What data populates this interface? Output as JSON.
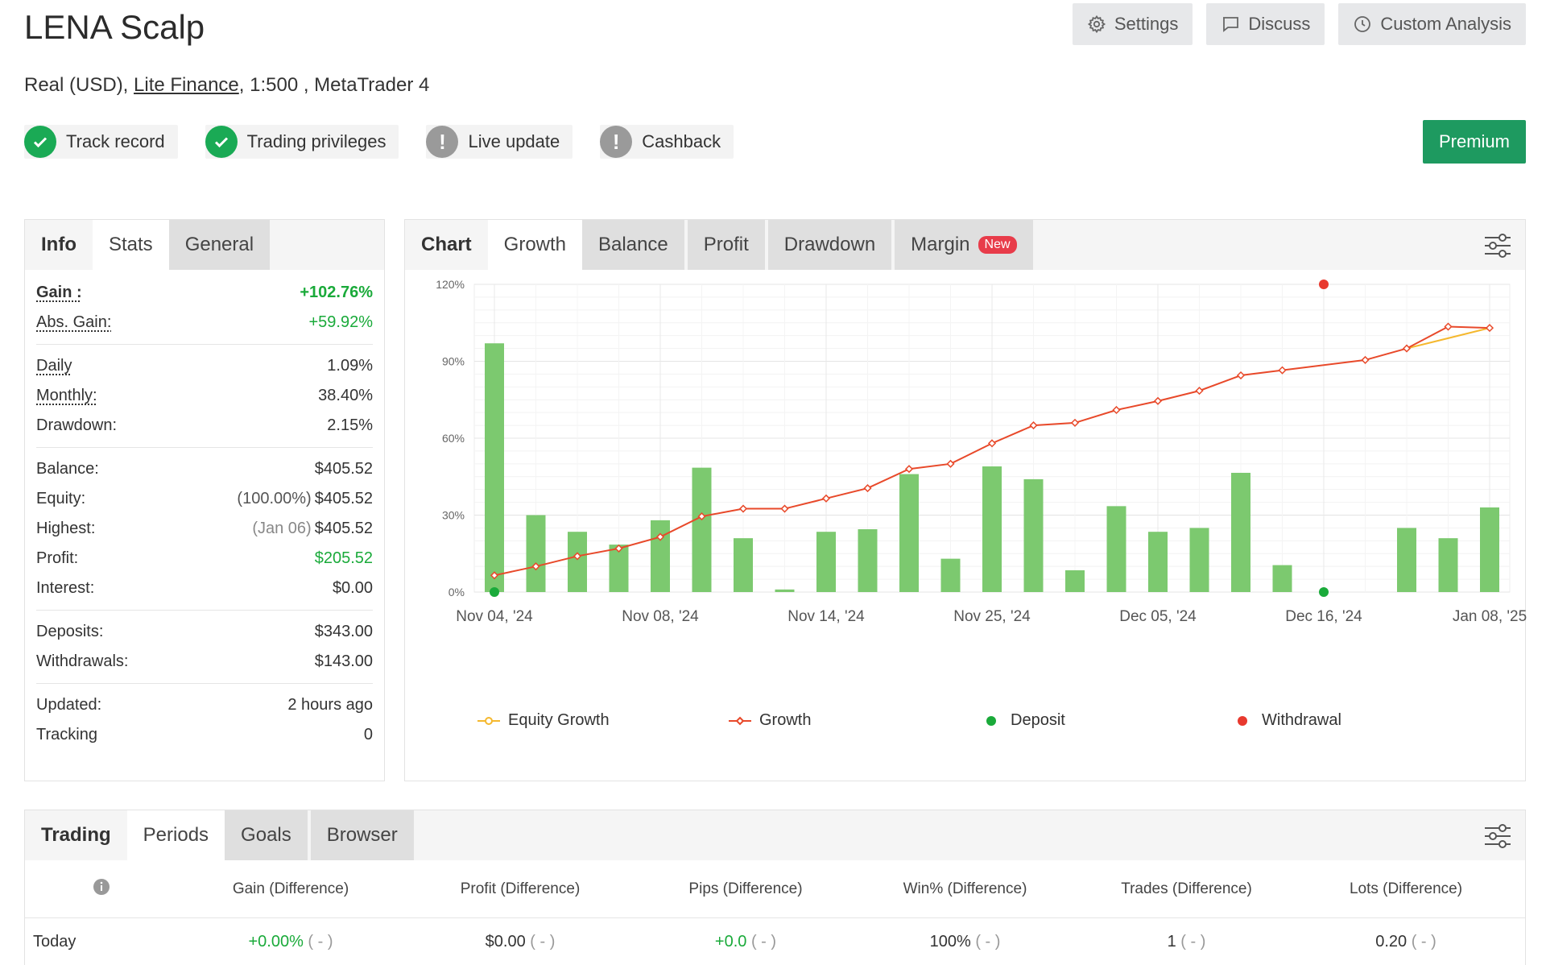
{
  "header": {
    "title": "LENA Scalp",
    "settings_label": "Settings",
    "discuss_label": "Discuss",
    "custom_analysis_label": "Custom Analysis"
  },
  "account": {
    "prefix": "Real (USD), ",
    "broker": "Lite Finance",
    "suffix": ", 1:500 , MetaTrader 4"
  },
  "badges": [
    {
      "label": "Track record",
      "status": "ok"
    },
    {
      "label": "Trading privileges",
      "status": "ok"
    },
    {
      "label": "Live update",
      "status": "warn"
    },
    {
      "label": "Cashback",
      "status": "warn"
    }
  ],
  "premium_label": "Premium",
  "info_tabs": [
    "Info",
    "Stats",
    "General"
  ],
  "info": {
    "gain_label": "Gain :",
    "gain": "+102.76%",
    "abs_gain_label": "Abs. Gain:",
    "abs_gain": "+59.92%",
    "daily_label": "Daily",
    "daily": "1.09%",
    "monthly_label": "Monthly:",
    "monthly": "38.40%",
    "drawdown_label": "Drawdown:",
    "drawdown": "2.15%",
    "balance_label": "Balance:",
    "balance": "$405.52",
    "equity_label": "Equity:",
    "equity_pct": "(100.00%)",
    "equity": "$405.52",
    "highest_label": "Highest:",
    "highest_date": "(Jan 06)",
    "highest": "$405.52",
    "profit_label": "Profit:",
    "profit": "$205.52",
    "interest_label": "Interest:",
    "interest": "$0.00",
    "deposits_label": "Deposits:",
    "deposits": "$343.00",
    "withdrawals_label": "Withdrawals:",
    "withdrawals": "$143.00",
    "updated_label": "Updated:",
    "updated": "2 hours ago",
    "tracking_label": "Tracking",
    "tracking": "0"
  },
  "chart_tabs": [
    "Chart",
    "Growth",
    "Balance",
    "Profit",
    "Drawdown",
    "Margin"
  ],
  "chart_new_badge": "New",
  "colors": {
    "green": "#1aaa3a",
    "growth_line": "#e8492a",
    "equity_line": "#f5b82e",
    "bar": "#7cc96f",
    "deposit": "#1aaa3a",
    "withdrawal": "#e8392e"
  },
  "chart_data": {
    "type": "bar",
    "x_ticks": [
      "Nov 04, '24",
      "Nov 08, '24",
      "Nov 14, '24",
      "Nov 25, '24",
      "Dec 05, '24",
      "Dec 16, '24",
      "Jan 08, '25"
    ],
    "y_ticks": [
      "0%",
      "30%",
      "60%",
      "90%",
      "120%"
    ],
    "ylim": [
      0,
      120
    ],
    "legend": [
      "Equity Growth",
      "Growth",
      "Deposit",
      "Withdrawal"
    ],
    "bars": [
      97,
      30,
      23.5,
      18.5,
      28,
      48.5,
      21,
      1,
      23.5,
      24.5,
      46,
      13,
      49,
      44,
      8.5,
      33.5,
      23.5,
      25,
      46.5,
      10.5,
      0,
      25,
      21,
      33
    ],
    "growth": [
      6.5,
      10,
      14,
      17,
      21.5,
      29.5,
      32.5,
      32.5,
      36.5,
      40.5,
      48,
      50,
      58,
      65,
      66,
      71,
      74.5,
      78.5,
      84.5,
      86.5,
      null,
      90.5,
      95,
      103.5,
      103
    ],
    "equity_growth_tail": [
      95,
      103
    ],
    "deposit_indices": [
      0,
      20
    ],
    "withdrawal_indices": [
      20
    ]
  },
  "trading_tabs": [
    "Trading",
    "Periods",
    "Goals",
    "Browser"
  ],
  "periods": {
    "headers": [
      "Gain (Difference)",
      "Profit (Difference)",
      "Pips (Difference)",
      "Win% (Difference)",
      "Trades (Difference)",
      "Lots (Difference)"
    ],
    "rows": [
      {
        "period": "Today",
        "gain": "+0.00%",
        "gain_diff": "( - )",
        "profit": "$0.00",
        "profit_diff": "( - )",
        "pips": "+0.0",
        "pips_diff": "( - )",
        "win": "100%",
        "win_diff": "( - )",
        "trades": "1",
        "trades_diff": "( - )",
        "lots": "0.20",
        "lots_diff": "( - )"
      }
    ]
  }
}
